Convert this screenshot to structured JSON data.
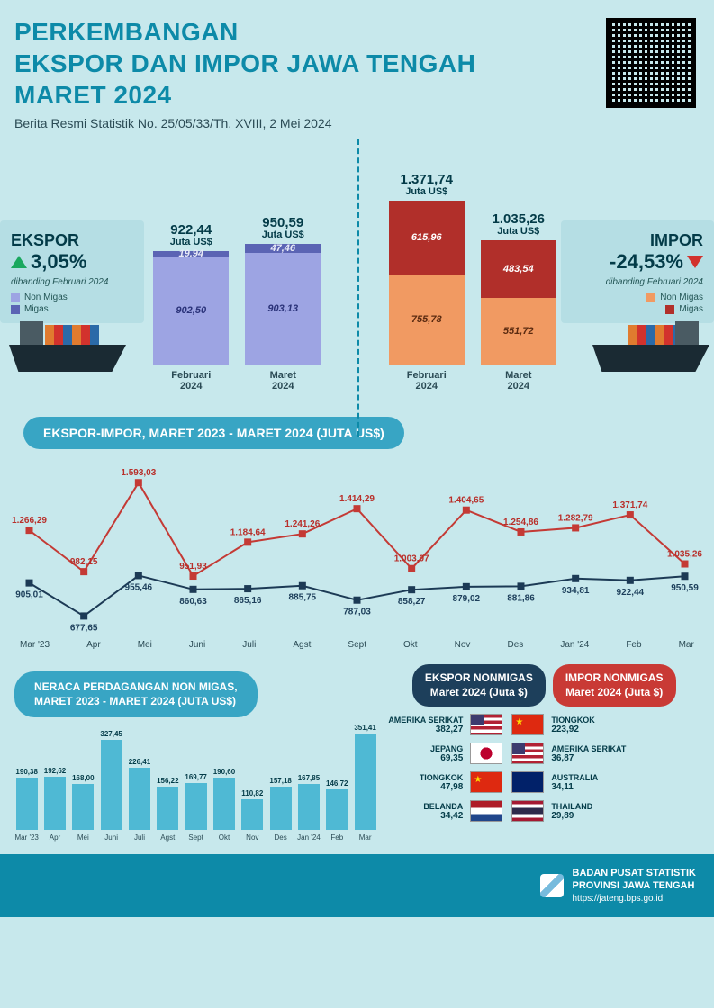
{
  "header": {
    "title_l1": "PERKEMBANGAN",
    "title_l2": "EKSPOR DAN IMPOR JAWA TENGAH",
    "title_l3": "MARET 2024",
    "subtitle": "Berita Resmi Statistik No. 25/05/33/Th. XVIII, 2 Mei 2024"
  },
  "colors": {
    "page_bg": "#c7e8ec",
    "accent": "#0d8aa8",
    "ekspor_nonmigas": "#9da4e3",
    "ekspor_migas": "#5b64b4",
    "impor_nonmigas": "#f19a62",
    "impor_migas": "#b12f2a",
    "up": "#1aa85f",
    "down": "#d2322d",
    "bar_blue": "#4fb9d4",
    "line_red": "#c43a35",
    "line_blue": "#1c3a55"
  },
  "ekspor": {
    "heading": "EKSPOR",
    "pct": "3,05%",
    "direction": "up",
    "note": "dibanding Februari 2024",
    "legend": [
      {
        "label": "Non Migas",
        "color": "#9da4e3"
      },
      {
        "label": "Migas",
        "color": "#5b64b4"
      }
    ],
    "unit": "Juta US$",
    "bars": [
      {
        "month": "Februari",
        "year": "2024",
        "total": "922,44",
        "segments": [
          {
            "key": "migas",
            "value": "19,94",
            "h": 6,
            "color": "#5b64b4",
            "text": "#e8eaf7"
          },
          {
            "key": "nonmigas",
            "value": "902,50",
            "h": 120,
            "color": "#9da4e3",
            "text": "#2b337a"
          }
        ]
      },
      {
        "month": "Maret",
        "year": "2024",
        "total": "950,59",
        "segments": [
          {
            "key": "migas",
            "value": "47,46",
            "h": 10,
            "color": "#5b64b4",
            "text": "#e8eaf7"
          },
          {
            "key": "nonmigas",
            "value": "903,13",
            "h": 124,
            "color": "#9da4e3",
            "text": "#2b337a"
          }
        ]
      }
    ]
  },
  "impor": {
    "heading": "IMPOR",
    "pct": "-24,53%",
    "direction": "down",
    "note": "dibanding Februari 2024",
    "legend": [
      {
        "label": "Non Migas",
        "color": "#f19a62"
      },
      {
        "label": "Migas",
        "color": "#b12f2a"
      }
    ],
    "unit": "Juta US$",
    "bars": [
      {
        "month": "Februari",
        "year": "2024",
        "total": "1.371,74",
        "segments": [
          {
            "key": "migas",
            "value": "615,96",
            "h": 82,
            "color": "#b12f2a",
            "text": "#fff"
          },
          {
            "key": "nonmigas",
            "value": "755,78",
            "h": 100,
            "color": "#f19a62",
            "text": "#5a2a10"
          }
        ]
      },
      {
        "month": "Maret",
        "year": "2024",
        "total": "1.035,26",
        "segments": [
          {
            "key": "migas",
            "value": "483,54",
            "h": 64,
            "color": "#b12f2a",
            "text": "#fff"
          },
          {
            "key": "nonmigas",
            "value": "551,72",
            "h": 74,
            "color": "#f19a62",
            "text": "#5a2a10"
          }
        ]
      }
    ]
  },
  "line_section": {
    "title": "EKSPOR-IMPOR, MARET 2023 - MARET 2024 (JUTA US$)",
    "months": [
      "Mar '23",
      "Apr",
      "Mei",
      "Juni",
      "Juli",
      "Agst",
      "Sept",
      "Okt",
      "Nov",
      "Des",
      "Jan '24",
      "Feb",
      "Mar"
    ],
    "ymin": 600,
    "ymax": 1650,
    "series": [
      {
        "name": "impor",
        "color": "#c43a35",
        "marker": "square",
        "values": [
          1266.29,
          982.15,
          1593.03,
          951.93,
          1184.64,
          1241.26,
          1414.29,
          1003.07,
          1404.65,
          1254.86,
          1282.79,
          1371.74,
          1035.26
        ],
        "labels": [
          "1.266,29",
          "982,15",
          "1.593,03",
          "951,93",
          "1.184,64",
          "1.241,26",
          "1.414,29",
          "1.003,07",
          "1.404,65",
          "1.254,86",
          "1.282,79",
          "1.371,74",
          "1.035,26"
        ]
      },
      {
        "name": "ekspor",
        "color": "#1c3a55",
        "marker": "square",
        "values": [
          905.01,
          677.65,
          955.46,
          860.63,
          865.16,
          885.75,
          787.03,
          858.27,
          879.02,
          881.86,
          934.81,
          922.44,
          950.59
        ],
        "labels": [
          "905,01",
          "677,65",
          "955,46",
          "860,63",
          "865,16",
          "885,75",
          "787,03",
          "858,27",
          "879,02",
          "881,86",
          "934,81",
          "922,44",
          "950,59"
        ]
      }
    ]
  },
  "neraca": {
    "title_l1": "NERACA PERDAGANGAN NON MIGAS,",
    "title_l2": "MARET 2023 - MARET 2024 (JUTA US$)",
    "months": [
      "Mar '23",
      "Apr",
      "Mei",
      "Juni",
      "Juli",
      "Agst",
      "Sept",
      "Okt",
      "Nov",
      "Des",
      "Jan '24",
      "Feb",
      "Mar"
    ],
    "values": [
      190.38,
      192.62,
      168.0,
      327.45,
      226.41,
      156.22,
      169.77,
      190.6,
      110.82,
      157.18,
      167.85,
      146.72,
      351.41
    ],
    "labels": [
      "190,38",
      "192,62",
      "168,00",
      "327,45",
      "226,41",
      "156,22",
      "169,77",
      "190,60",
      "110,82",
      "157,18",
      "167,85",
      "146,72",
      "351,41"
    ],
    "max": 360
  },
  "ekspor_countries": {
    "title_l1": "EKSPOR NONMIGAS",
    "title_l2": "Maret 2024 (Juta $)",
    "items": [
      {
        "name": "AMERIKA SERIKAT",
        "val": "382,27",
        "flag": "us"
      },
      {
        "name": "JEPANG",
        "val": "69,35",
        "flag": "jp"
      },
      {
        "name": "TIONGKOK",
        "val": "47,98",
        "flag": "cn"
      },
      {
        "name": "BELANDA",
        "val": "34,42",
        "flag": "nl"
      }
    ]
  },
  "impor_countries": {
    "title_l1": "IMPOR NONMIGAS",
    "title_l2": "Maret 2024 (Juta $)",
    "items": [
      {
        "name": "TIONGKOK",
        "val": "223,92",
        "flag": "cn"
      },
      {
        "name": "AMERIKA SERIKAT",
        "val": "36,87",
        "flag": "us"
      },
      {
        "name": "AUSTRALIA",
        "val": "34,11",
        "flag": "au"
      },
      {
        "name": "THAILAND",
        "val": "29,89",
        "flag": "th"
      }
    ]
  },
  "flags": {
    "us": "background:linear-gradient(#b22234 0 15%,#fff 15% 30%,#b22234 30% 45%,#fff 45% 60%,#b22234 60% 75%,#fff 75% 90%,#b22234 90% 100%);position:relative;",
    "us_canton": "",
    "jp": "background:#fff radial-gradient(circle at 50% 50%,#bc002d 0 32%,transparent 33%);",
    "cn": "background:#de2910;",
    "nl": "background:linear-gradient(#ae1c28 0 33%,#fff 33% 66%,#21468b 66% 100%);",
    "au": "background:#012169;",
    "th": "background:linear-gradient(#a51931 0 17%,#fff 17% 33%,#2d2a4a 33% 67%,#fff 67% 83%,#a51931 83% 100%);"
  },
  "footer": {
    "l1": "BADAN PUSAT STATISTIK",
    "l2": "PROVINSI JAWA TENGAH",
    "l3": "https://jateng.bps.go.id"
  }
}
